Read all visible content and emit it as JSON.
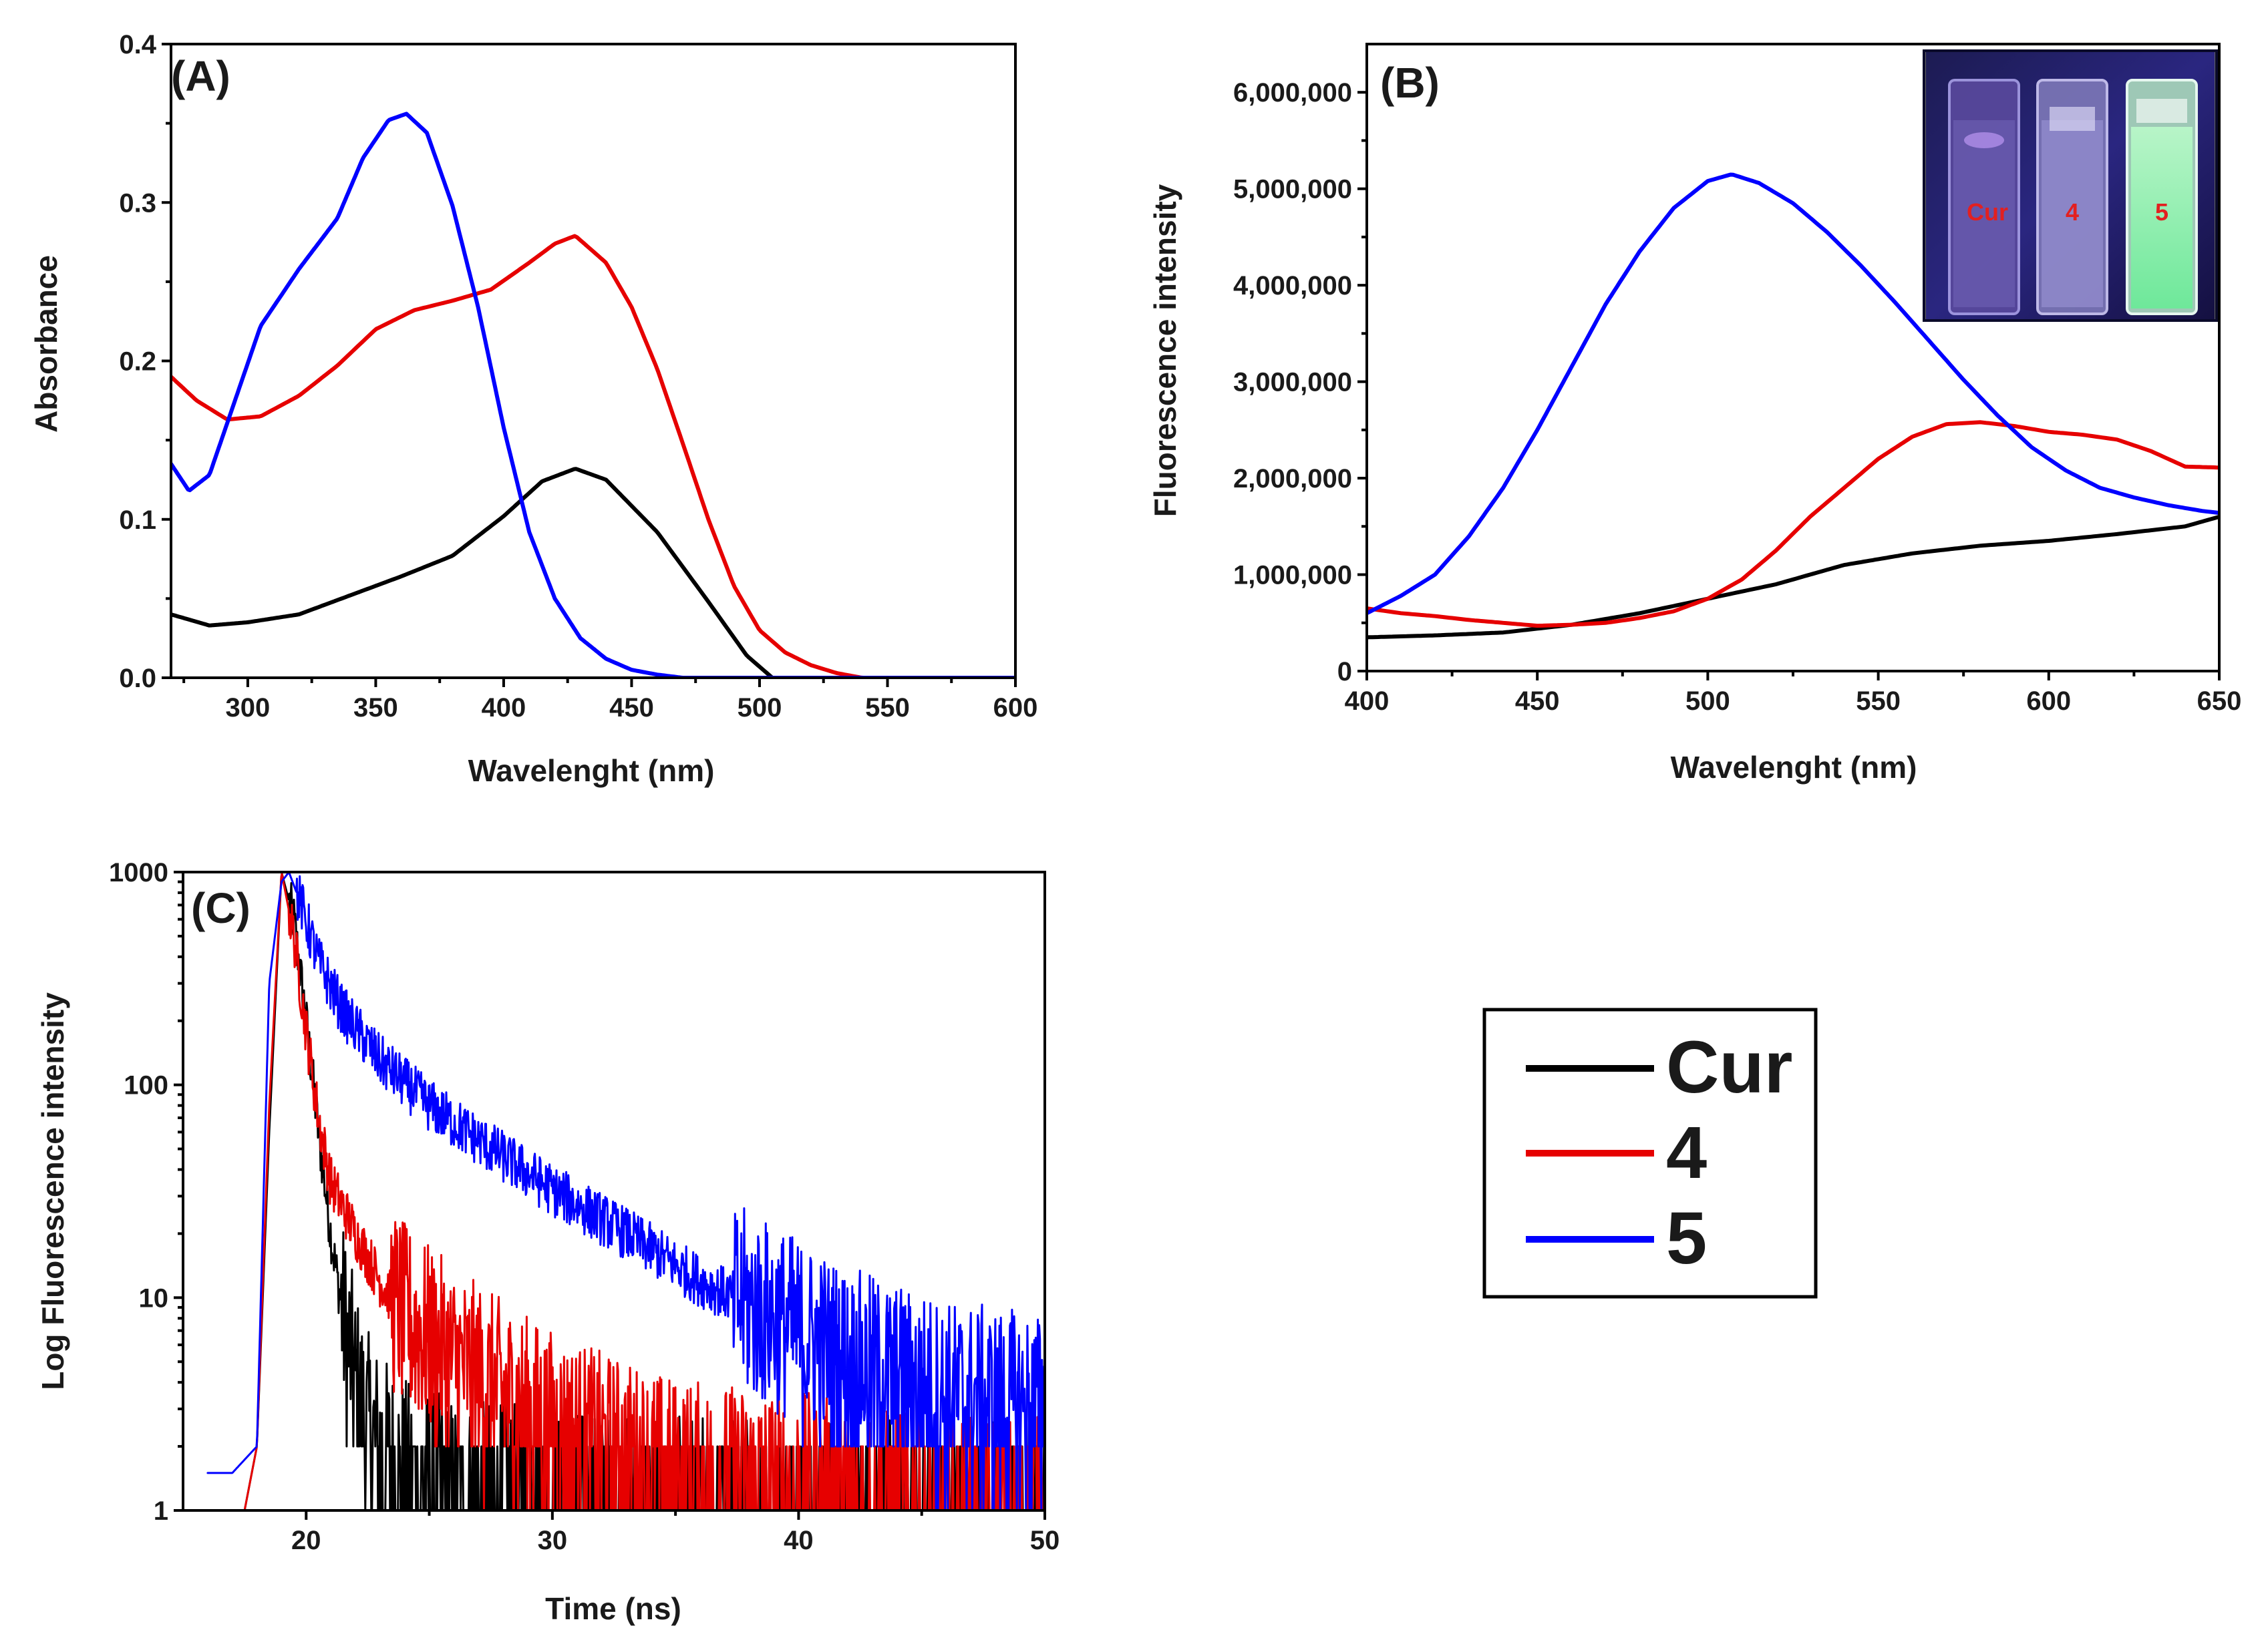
{
  "chart_data": [
    {
      "panel": "(A)",
      "type": "line",
      "xlabel": "Wavelenght (nm)",
      "ylabel": "Absorbance",
      "xlim": [
        270,
        600
      ],
      "ylim": [
        0,
        0.4
      ],
      "xticks": [
        300,
        350,
        400,
        450,
        500,
        550,
        600
      ],
      "xtick_labels": [
        "300",
        "350",
        "400",
        "450",
        "500",
        "550",
        "600"
      ],
      "yticks": [
        0,
        0.1,
        0.2,
        0.3,
        0.4
      ],
      "ytick_labels": [
        "0.0",
        "0.1",
        "0.2",
        "0.3",
        "0.4"
      ],
      "series": [
        {
          "name": "Cur",
          "color": "#000000",
          "x": [
            270,
            285,
            300,
            320,
            340,
            360,
            380,
            400,
            415,
            428,
            440,
            460,
            480,
            495,
            505
          ],
          "y": [
            0.04,
            0.033,
            0.035,
            0.04,
            0.052,
            0.064,
            0.077,
            0.102,
            0.124,
            0.132,
            0.125,
            0.092,
            0.048,
            0.014,
            0.0
          ]
        },
        {
          "name": "4",
          "color": "#e60000",
          "x": [
            270,
            280,
            292,
            305,
            320,
            335,
            350,
            365,
            380,
            395,
            410,
            420,
            428,
            440,
            450,
            460,
            470,
            480,
            490,
            500,
            510,
            520,
            530,
            540,
            550
          ],
          "y": [
            0.19,
            0.175,
            0.163,
            0.165,
            0.178,
            0.197,
            0.22,
            0.232,
            0.238,
            0.245,
            0.262,
            0.274,
            0.279,
            0.262,
            0.234,
            0.195,
            0.148,
            0.1,
            0.058,
            0.03,
            0.016,
            0.008,
            0.003,
            0.0,
            0.0
          ]
        },
        {
          "name": "5",
          "color": "#0000ff",
          "x": [
            270,
            277,
            285,
            295,
            305,
            320,
            335,
            345,
            355,
            362,
            370,
            380,
            390,
            400,
            410,
            420,
            430,
            440,
            450,
            460,
            470
          ],
          "y": [
            0.135,
            0.118,
            0.128,
            0.175,
            0.222,
            0.258,
            0.29,
            0.328,
            0.352,
            0.356,
            0.344,
            0.298,
            0.234,
            0.158,
            0.092,
            0.05,
            0.025,
            0.012,
            0.005,
            0.002,
            0.0
          ]
        }
      ]
    },
    {
      "panel": "(B)",
      "type": "line",
      "xlabel": "Wavelenght (nm)",
      "ylabel": "Fluorescence intensity",
      "xlim": [
        400,
        650
      ],
      "ylim": [
        0,
        6500000
      ],
      "xticks": [
        400,
        450,
        500,
        550,
        600,
        650
      ],
      "xtick_labels": [
        "400",
        "450",
        "500",
        "550",
        "600",
        "650"
      ],
      "yticks": [
        0,
        1000000,
        2000000,
        3000000,
        4000000,
        5000000,
        6000000
      ],
      "ytick_labels": [
        "0",
        "1,000,000",
        "2,000,000",
        "3,000,000",
        "4,000,000",
        "5,000,000",
        "6,000,000"
      ],
      "inset": {
        "description": "photo of three cuvettes under UV light",
        "labels": [
          "Cur",
          "4",
          "5"
        ]
      },
      "series": [
        {
          "name": "Cur",
          "color": "#000000",
          "x": [
            400,
            420,
            440,
            460,
            480,
            500,
            520,
            540,
            560,
            580,
            600,
            620,
            640,
            650
          ],
          "y": [
            350000,
            370000,
            400000,
            480000,
            600000,
            750000,
            900000,
            1100000,
            1220000,
            1300000,
            1350000,
            1420000,
            1500000,
            1600000
          ]
        },
        {
          "name": "4",
          "color": "#e60000",
          "x": [
            400,
            410,
            420,
            430,
            440,
            450,
            460,
            470,
            480,
            490,
            500,
            510,
            520,
            530,
            540,
            550,
            560,
            570,
            580,
            590,
            600,
            610,
            620,
            630,
            640,
            650
          ],
          "y": [
            650000,
            600000,
            570000,
            530000,
            500000,
            470000,
            480000,
            500000,
            550000,
            620000,
            750000,
            950000,
            1250000,
            1600000,
            1900000,
            2200000,
            2430000,
            2560000,
            2580000,
            2540000,
            2480000,
            2450000,
            2400000,
            2280000,
            2120000,
            2110000
          ]
        },
        {
          "name": "5",
          "color": "#0000ff",
          "x": [
            400,
            410,
            420,
            430,
            440,
            450,
            460,
            470,
            480,
            490,
            500,
            507,
            515,
            525,
            535,
            545,
            555,
            565,
            575,
            585,
            595,
            605,
            615,
            625,
            635,
            645,
            650
          ],
          "y": [
            600000,
            780000,
            1000000,
            1400000,
            1900000,
            2500000,
            3150000,
            3800000,
            4350000,
            4800000,
            5080000,
            5150000,
            5060000,
            4850000,
            4550000,
            4200000,
            3820000,
            3420000,
            3020000,
            2650000,
            2320000,
            2080000,
            1900000,
            1800000,
            1720000,
            1660000,
            1640000
          ]
        }
      ]
    },
    {
      "panel": "(C)",
      "type": "line",
      "xlabel": "Time (ns)",
      "ylabel": "Log Fluorescence intensity",
      "xscale": "linear",
      "yscale": "log",
      "xlim": [
        15,
        50
      ],
      "ylim": [
        1,
        1000
      ],
      "xticks": [
        20,
        30,
        40,
        50
      ],
      "xtick_labels": [
        "20",
        "30",
        "40",
        "50"
      ],
      "yticks": [
        1,
        10,
        100,
        1000
      ],
      "ytick_labels": [
        "1",
        "10",
        "100",
        "1000"
      ],
      "series": [
        {
          "name": "Cur",
          "color": "#000000",
          "peak_x": 19.0,
          "peak_y": 1000,
          "decay_to": "baseline ~1-2 by 23 ns",
          "x": [
            17.5,
            18.0,
            18.5,
            19.0,
            19.5,
            20.0,
            20.5,
            21.0,
            21.5,
            22.0,
            22.5,
            23.0,
            24.0,
            26.0,
            30.0,
            33.0
          ],
          "y": [
            1,
            2,
            60,
            1000,
            600,
            200,
            60,
            20,
            8,
            4,
            2.5,
            2,
            1.5,
            1.2,
            1.1,
            1
          ]
        },
        {
          "name": "4",
          "color": "#e60000",
          "peak_x": 19.0,
          "peak_y": 1000,
          "decay_to": "baseline ~1-2 by 32 ns",
          "x": [
            17.5,
            18.0,
            18.5,
            19.0,
            19.5,
            20.0,
            20.5,
            21.0,
            22.0,
            23.0,
            24.0,
            26.0,
            28.0,
            30.0,
            32.0,
            35.0,
            40.0,
            45.0
          ],
          "y": [
            1,
            2,
            80,
            1000,
            500,
            180,
            70,
            35,
            20,
            12,
            8,
            5,
            3.5,
            2.5,
            2,
            1.5,
            1.3,
            1
          ]
        },
        {
          "name": "5",
          "color": "#0000ff",
          "peak_x": 19.3,
          "peak_y": 1000,
          "decay_to": "~3 at 50 ns",
          "x": [
            16.0,
            17.0,
            18.0,
            18.5,
            19.0,
            19.3,
            19.8,
            20.5,
            21.5,
            23.0,
            25.0,
            27.0,
            30.0,
            33.0,
            36.0,
            39.0,
            42.0,
            46.0,
            50.0
          ],
          "y": [
            1.5,
            1.5,
            2,
            300,
            900,
            1000,
            700,
            380,
            220,
            130,
            80,
            55,
            32,
            20,
            12,
            8,
            5,
            3.5,
            3
          ]
        }
      ]
    }
  ],
  "legend": {
    "entries": [
      {
        "label": "Cur",
        "color": "#000000"
      },
      {
        "label": "4",
        "color": "#e60000"
      },
      {
        "label": "5",
        "color": "#0000ff"
      }
    ]
  }
}
